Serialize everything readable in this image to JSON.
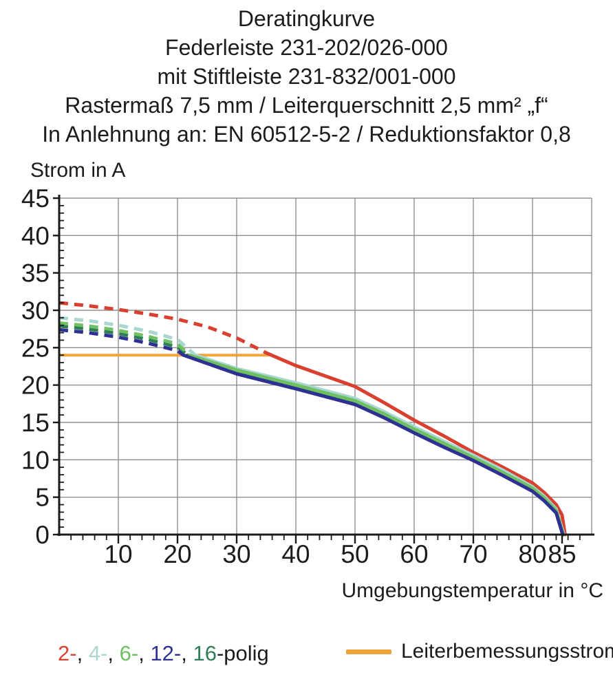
{
  "title": {
    "lines": [
      "Deratingkurve",
      "Federleiste 231-202/026-000",
      "mit Stiftleiste 231-832/001-000",
      "Rastermaß 7,5 mm / Leiterquerschnitt 2,5 mm² „f“",
      "In Anlehnung an: EN 60512-5-2 / Reduktionsfaktor 0,8"
    ]
  },
  "chart_data": {
    "type": "line",
    "title": "Deratingkurve",
    "ylabel": "Strom in A",
    "xlabel": "Umgebungstemperatur in °C",
    "xlim": [
      0,
      90
    ],
    "ylim": [
      0,
      45
    ],
    "x_tick_labels": [
      10,
      20,
      30,
      40,
      50,
      60,
      70,
      80,
      85
    ],
    "y_tick_labels": [
      0,
      5,
      10,
      15,
      20,
      25,
      30,
      35,
      40,
      45
    ],
    "x_grid_step": 10,
    "y_grid_step": 5,
    "x_minor_tick_step": 2,
    "y_minor_tick_step": 1,
    "grid": true,
    "grid_color": "#8f8f8f",
    "axis_color": "#1a1a1a",
    "rated_current_line": {
      "label": "Leiterbemessungsstrom",
      "value_a": 24,
      "x_start": 0,
      "x_end": 35.5,
      "color": "#f0a43c"
    },
    "series": [
      {
        "name": "2-polig",
        "color": "#d8402f",
        "dashed": [
          [
            0,
            31.0
          ],
          [
            5,
            30.6
          ],
          [
            10,
            30.1
          ],
          [
            15,
            29.5
          ],
          [
            20,
            28.8
          ],
          [
            25,
            27.8
          ],
          [
            30,
            26.3
          ],
          [
            35,
            24.3
          ]
        ],
        "solid": [
          [
            35,
            24.3
          ],
          [
            40,
            22.6
          ],
          [
            45,
            21.2
          ],
          [
            50,
            19.8
          ],
          [
            55,
            17.6
          ],
          [
            60,
            15.3
          ],
          [
            65,
            13.2
          ],
          [
            70,
            11.0
          ],
          [
            75,
            9.0
          ],
          [
            80,
            6.9
          ],
          [
            82,
            5.6
          ],
          [
            84,
            4.0
          ],
          [
            85,
            2.6
          ],
          [
            85.5,
            0
          ]
        ]
      },
      {
        "name": "4-polig",
        "color": "#a9d7d0",
        "dashed": [
          [
            0,
            29.0
          ],
          [
            5,
            28.6
          ],
          [
            10,
            28.0
          ],
          [
            15,
            27.2
          ],
          [
            20,
            26.1
          ],
          [
            23,
            24.0
          ]
        ],
        "solid": [
          [
            23,
            24.0
          ],
          [
            30,
            22.2
          ],
          [
            40,
            20.3
          ],
          [
            50,
            18.2
          ],
          [
            55,
            16.4
          ],
          [
            60,
            14.4
          ],
          [
            65,
            12.5
          ],
          [
            70,
            10.6
          ],
          [
            75,
            8.6
          ],
          [
            80,
            6.4
          ],
          [
            82,
            5.1
          ],
          [
            84,
            3.4
          ],
          [
            85.3,
            0
          ]
        ]
      },
      {
        "name": "16-polig",
        "color": "#2e7d57",
        "dashed": [
          [
            0,
            27.9
          ],
          [
            5,
            27.5
          ],
          [
            10,
            26.9
          ],
          [
            15,
            26.1
          ],
          [
            20,
            25.1
          ],
          [
            21.7,
            24.0
          ]
        ],
        "solid": [
          [
            21.7,
            24.0
          ],
          [
            30,
            21.8
          ],
          [
            40,
            19.8
          ],
          [
            50,
            17.7
          ],
          [
            55,
            15.9
          ],
          [
            60,
            13.9
          ],
          [
            65,
            12.0
          ],
          [
            70,
            10.1
          ],
          [
            75,
            8.1
          ],
          [
            80,
            6.0
          ],
          [
            82,
            4.7
          ],
          [
            84,
            3.0
          ],
          [
            85.2,
            0
          ]
        ]
      },
      {
        "name": "6-polig",
        "color": "#6fbf63",
        "dashed": [
          [
            0,
            28.3
          ],
          [
            5,
            27.9
          ],
          [
            10,
            27.3
          ],
          [
            15,
            26.5
          ],
          [
            20,
            25.5
          ],
          [
            22,
            24.0
          ]
        ],
        "solid": [
          [
            22,
            24.0
          ],
          [
            30,
            22.0
          ],
          [
            40,
            20.0
          ],
          [
            50,
            17.9
          ],
          [
            55,
            16.1
          ],
          [
            60,
            14.1
          ],
          [
            65,
            12.2
          ],
          [
            70,
            10.3
          ],
          [
            75,
            8.3
          ],
          [
            80,
            6.2
          ],
          [
            82,
            4.9
          ],
          [
            84,
            3.2
          ],
          [
            85.2,
            0
          ]
        ]
      },
      {
        "name": "12-polig",
        "color": "#2e3192",
        "dashed": [
          [
            0,
            27.4
          ],
          [
            5,
            27.0
          ],
          [
            10,
            26.4
          ],
          [
            15,
            25.6
          ],
          [
            20,
            24.6
          ],
          [
            21,
            24.0
          ]
        ],
        "solid": [
          [
            21,
            24.0
          ],
          [
            30,
            21.5
          ],
          [
            40,
            19.5
          ],
          [
            50,
            17.4
          ],
          [
            55,
            15.6
          ],
          [
            60,
            13.6
          ],
          [
            65,
            11.7
          ],
          [
            70,
            9.9
          ],
          [
            75,
            7.9
          ],
          [
            80,
            5.8
          ],
          [
            82,
            4.5
          ],
          [
            84,
            2.9
          ],
          [
            85.1,
            0
          ]
        ]
      }
    ]
  },
  "legend": {
    "poles": [
      {
        "label": "2-",
        "color": "#d8402f"
      },
      {
        "label": "4-",
        "color": "#a9d7d0"
      },
      {
        "label": "6-",
        "color": "#6fbf63"
      },
      {
        "label": "12-",
        "color": "#2e3192"
      },
      {
        "label": "16",
        "color": "#2e7d57"
      }
    ],
    "separator": ", ",
    "suffix": "-polig"
  }
}
